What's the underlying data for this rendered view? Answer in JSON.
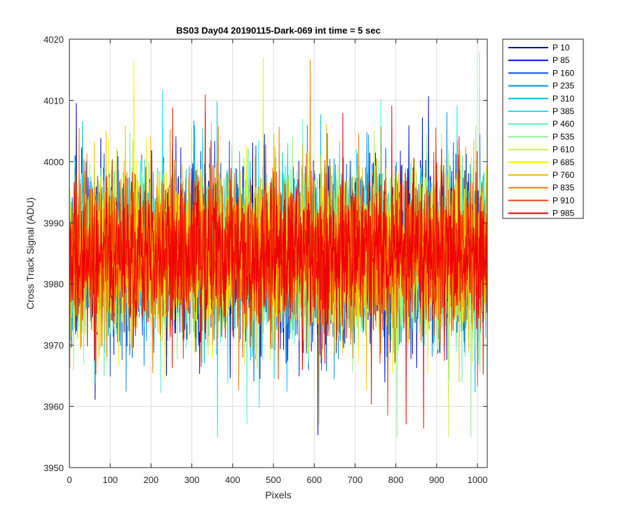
{
  "chart_data": {
    "type": "line",
    "title": "BS03 Day04 20190115-Dark-069 int time = 5 sec",
    "xlabel": "Pixels",
    "ylabel": "Cross Track Signal (ADU)",
    "xlim": [
      0,
      1024
    ],
    "ylim": [
      3950,
      4020
    ],
    "xticks": [
      "0",
      "100",
      "200",
      "300",
      "400",
      "500",
      "600",
      "700",
      "800",
      "900",
      "1000"
    ],
    "yticks": [
      "3950",
      "3960",
      "3970",
      "3980",
      "3990",
      "4000",
      "4010",
      "4020"
    ],
    "grid": true,
    "legend_position": "outside-top-right",
    "n_points": 1024,
    "noise_center": 3985,
    "series": [
      {
        "name": "P 10",
        "color": "#0000b0"
      },
      {
        "name": "P 85",
        "color": "#0010d8"
      },
      {
        "name": "P 160",
        "color": "#0050e0"
      },
      {
        "name": "P 235",
        "color": "#0090e8"
      },
      {
        "name": "P 310",
        "color": "#00b8f0"
      },
      {
        "name": "P 385",
        "color": "#10e8f0"
      },
      {
        "name": "P 460",
        "color": "#50f0c0"
      },
      {
        "name": "P 535",
        "color": "#90f090"
      },
      {
        "name": "P 610",
        "color": "#c8f040"
      },
      {
        "name": "P 685",
        "color": "#f0f000"
      },
      {
        "name": "P 760",
        "color": "#f0c000"
      },
      {
        "name": "P 835",
        "color": "#f08000"
      },
      {
        "name": "P 910",
        "color": "#f04000"
      },
      {
        "name": "P 985",
        "color": "#f00000"
      }
    ]
  }
}
